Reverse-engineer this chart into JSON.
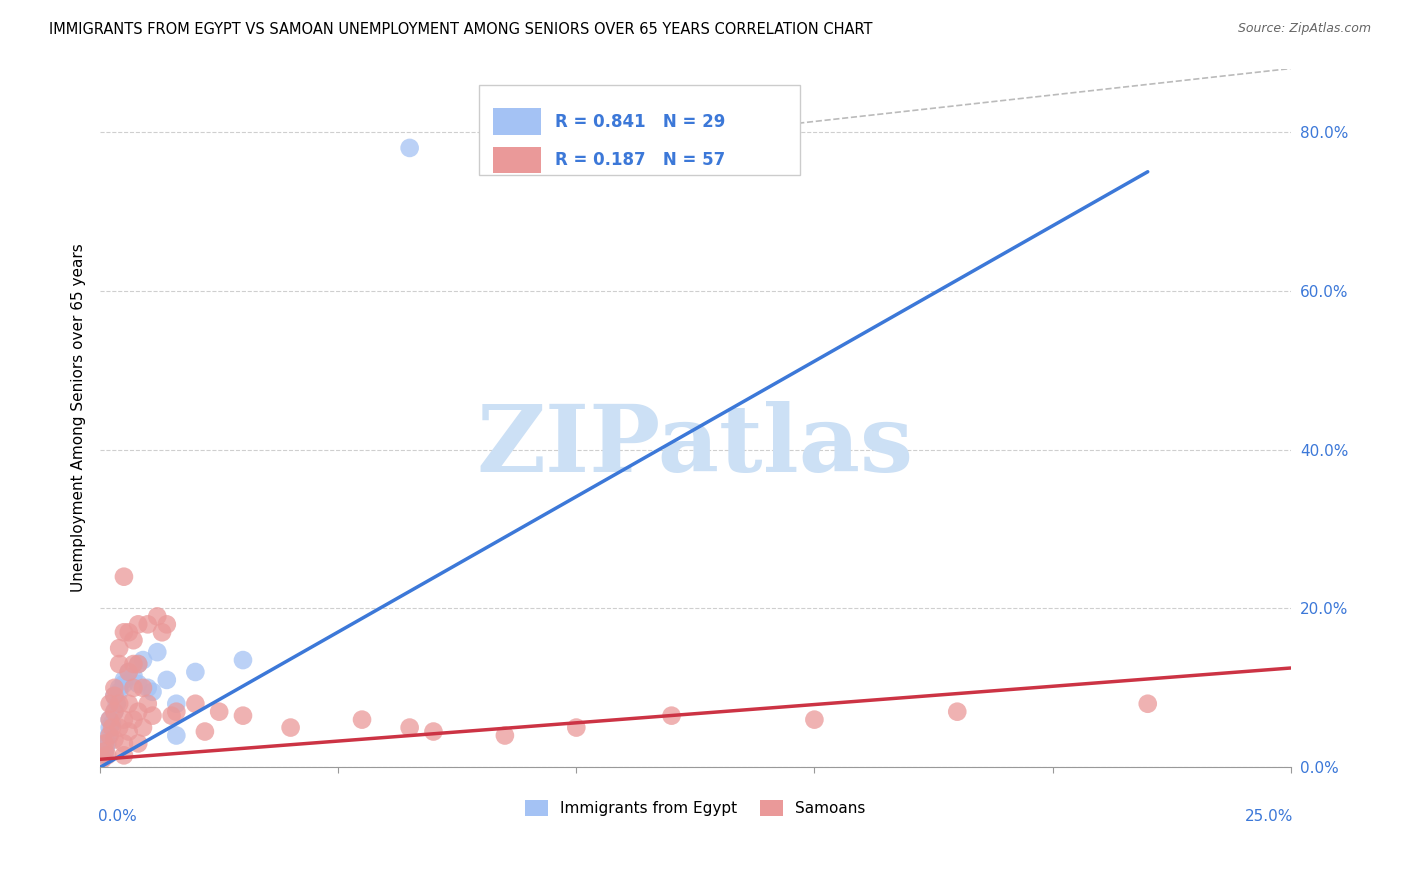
{
  "title": "IMMIGRANTS FROM EGYPT VS SAMOAN UNEMPLOYMENT AMONG SENIORS OVER 65 YEARS CORRELATION CHART",
  "source": "Source: ZipAtlas.com",
  "ylabel": "Unemployment Among Seniors over 65 years",
  "right_yticks": [
    "0.0%",
    "20.0%",
    "40.0%",
    "60.0%",
    "80.0%"
  ],
  "right_ytick_vals": [
    0.0,
    0.2,
    0.4,
    0.6,
    0.8
  ],
  "xmin": 0.0,
  "xmax": 0.25,
  "ymin": 0.0,
  "ymax": 0.88,
  "blue_R": 0.841,
  "blue_N": 29,
  "pink_R": 0.187,
  "pink_N": 57,
  "blue_color": "#a4c2f4",
  "pink_color": "#ea9999",
  "blue_line_color": "#3c78d8",
  "pink_line_color": "#cc3344",
  "blue_scatter": [
    [
      0.0008,
      0.02
    ],
    [
      0.001,
      0.015
    ],
    [
      0.0012,
      0.025
    ],
    [
      0.0015,
      0.03
    ],
    [
      0.0018,
      0.04
    ],
    [
      0.002,
      0.05
    ],
    [
      0.002,
      0.06
    ],
    [
      0.0025,
      0.055
    ],
    [
      0.003,
      0.07
    ],
    [
      0.003,
      0.09
    ],
    [
      0.0035,
      0.08
    ],
    [
      0.004,
      0.1
    ],
    [
      0.004,
      0.095
    ],
    [
      0.005,
      0.105
    ],
    [
      0.005,
      0.11
    ],
    [
      0.006,
      0.12
    ],
    [
      0.007,
      0.115
    ],
    [
      0.008,
      0.13
    ],
    [
      0.008,
      0.105
    ],
    [
      0.009,
      0.135
    ],
    [
      0.01,
      0.1
    ],
    [
      0.011,
      0.095
    ],
    [
      0.012,
      0.145
    ],
    [
      0.014,
      0.11
    ],
    [
      0.016,
      0.08
    ],
    [
      0.016,
      0.04
    ],
    [
      0.02,
      0.12
    ],
    [
      0.03,
      0.135
    ],
    [
      0.065,
      0.78
    ]
  ],
  "pink_scatter": [
    [
      0.0005,
      0.01
    ],
    [
      0.001,
      0.02
    ],
    [
      0.001,
      0.03
    ],
    [
      0.0015,
      0.015
    ],
    [
      0.002,
      0.04
    ],
    [
      0.002,
      0.06
    ],
    [
      0.002,
      0.08
    ],
    [
      0.0025,
      0.05
    ],
    [
      0.003,
      0.07
    ],
    [
      0.003,
      0.09
    ],
    [
      0.003,
      0.035
    ],
    [
      0.003,
      0.1
    ],
    [
      0.004,
      0.08
    ],
    [
      0.004,
      0.13
    ],
    [
      0.004,
      0.15
    ],
    [
      0.004,
      0.05
    ],
    [
      0.005,
      0.24
    ],
    [
      0.005,
      0.17
    ],
    [
      0.005,
      0.06
    ],
    [
      0.005,
      0.03
    ],
    [
      0.005,
      0.015
    ],
    [
      0.006,
      0.17
    ],
    [
      0.006,
      0.12
    ],
    [
      0.006,
      0.08
    ],
    [
      0.006,
      0.045
    ],
    [
      0.007,
      0.16
    ],
    [
      0.007,
      0.13
    ],
    [
      0.007,
      0.1
    ],
    [
      0.007,
      0.06
    ],
    [
      0.008,
      0.18
    ],
    [
      0.008,
      0.13
    ],
    [
      0.008,
      0.07
    ],
    [
      0.008,
      0.03
    ],
    [
      0.009,
      0.1
    ],
    [
      0.009,
      0.05
    ],
    [
      0.01,
      0.18
    ],
    [
      0.01,
      0.08
    ],
    [
      0.011,
      0.065
    ],
    [
      0.012,
      0.19
    ],
    [
      0.013,
      0.17
    ],
    [
      0.014,
      0.18
    ],
    [
      0.015,
      0.065
    ],
    [
      0.016,
      0.07
    ],
    [
      0.02,
      0.08
    ],
    [
      0.022,
      0.045
    ],
    [
      0.025,
      0.07
    ],
    [
      0.03,
      0.065
    ],
    [
      0.04,
      0.05
    ],
    [
      0.055,
      0.06
    ],
    [
      0.065,
      0.05
    ],
    [
      0.07,
      0.045
    ],
    [
      0.085,
      0.04
    ],
    [
      0.1,
      0.05
    ],
    [
      0.12,
      0.065
    ],
    [
      0.15,
      0.06
    ],
    [
      0.18,
      0.07
    ],
    [
      0.22,
      0.08
    ]
  ],
  "blue_trend": [
    0.0,
    0.22,
    0.0,
    0.75
  ],
  "pink_trend": [
    0.0,
    0.25,
    0.01,
    0.125
  ],
  "diagonal_dashed": [
    0.13,
    0.8,
    0.25,
    0.88
  ],
  "watermark_text": "ZIPatlas",
  "watermark_color": "#cce0f5",
  "legend_color": "#3c78d8",
  "bottom_legend_items": [
    "Immigrants from Egypt",
    "Samoans"
  ]
}
